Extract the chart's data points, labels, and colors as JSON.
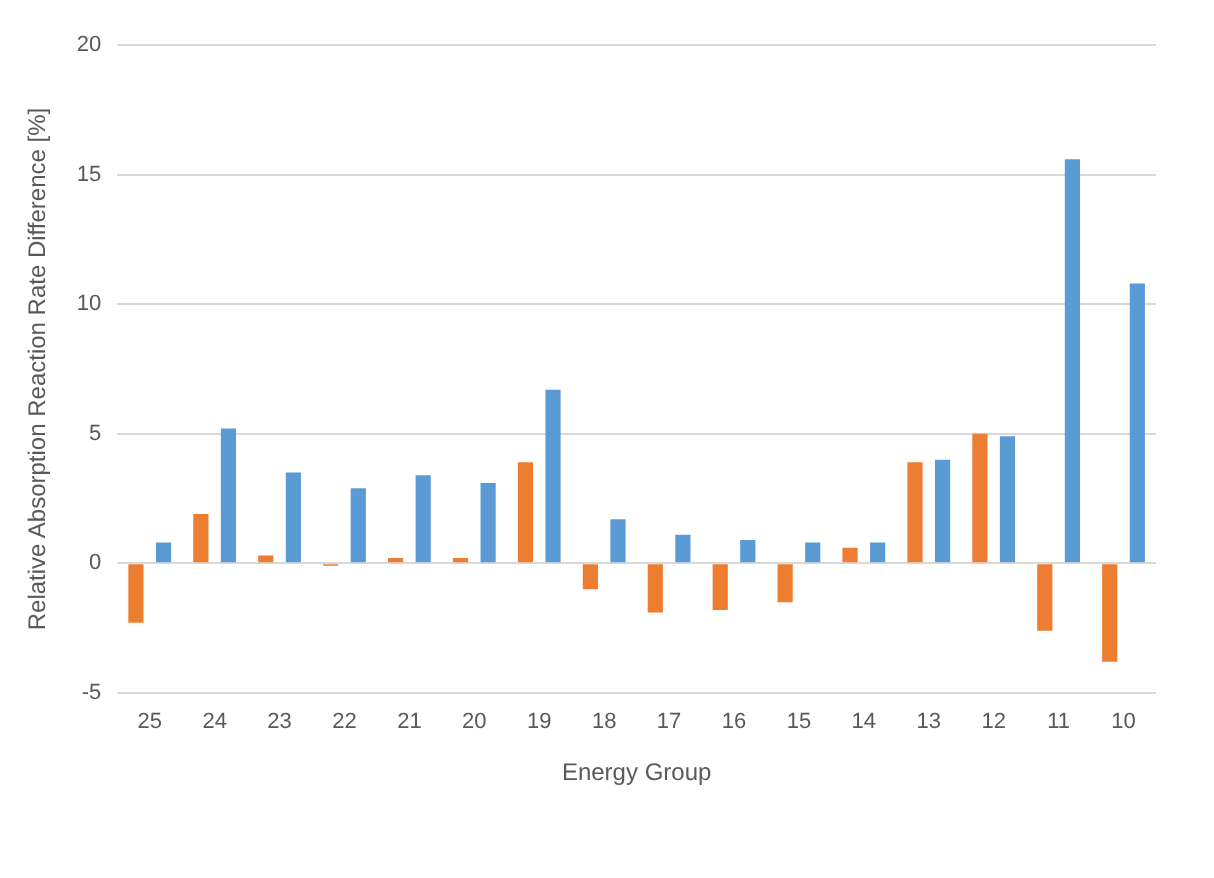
{
  "chart_data": {
    "type": "bar",
    "xlabel": "Energy Group",
    "ylabel": "Relative Absorption Reaction Rate Difference [%]",
    "categories": [
      "25",
      "24",
      "23",
      "22",
      "21",
      "20",
      "19",
      "18",
      "17",
      "16",
      "15",
      "14",
      "13",
      "12",
      "11",
      "10"
    ],
    "series": [
      {
        "color": "#ed7d31",
        "values": [
          -2.3,
          1.9,
          0.3,
          -0.1,
          0.2,
          0.2,
          3.9,
          -1.0,
          -1.9,
          -1.8,
          -1.5,
          0.6,
          3.9,
          5.0,
          -2.6,
          -3.8
        ]
      },
      {
        "color": "#5b9bd5",
        "values": [
          0.8,
          5.2,
          3.5,
          2.9,
          3.4,
          3.1,
          6.7,
          1.7,
          1.1,
          0.9,
          0.8,
          0.8,
          4.0,
          4.9,
          15.6,
          10.8
        ]
      }
    ],
    "ylim": [
      -5,
      20
    ],
    "yticks": [
      -5,
      0,
      5,
      10,
      15,
      20
    ],
    "grid": "y"
  }
}
